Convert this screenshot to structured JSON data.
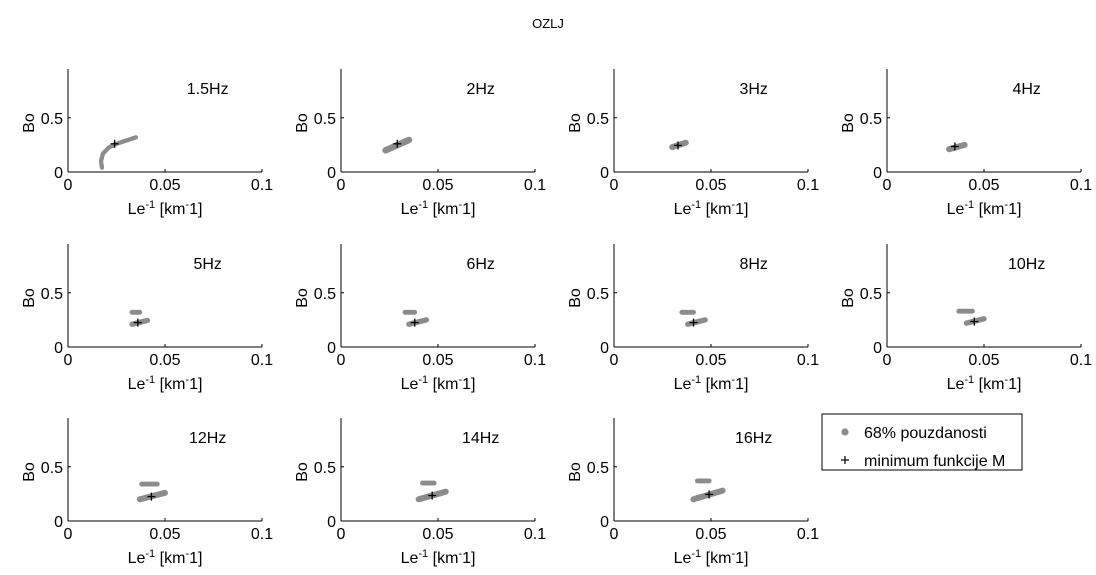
{
  "figure": {
    "title": "OZLJ"
  },
  "legend": {
    "items": [
      {
        "label": "68% pouzdanosti",
        "marker": "dot"
      },
      {
        "label": "minimum funkcije M",
        "marker": "plus"
      }
    ]
  },
  "colors": {
    "confidence": "#8c8c8c",
    "minimum": "#000000",
    "axis": "#000000"
  },
  "chart_data": [
    {
      "type": "scatter",
      "title": "1.5Hz",
      "xlabel": "Le",
      "xlabel_sup": "-1",
      "xlabel_unit": "[km",
      "xlabel_unit_sup": "-",
      "xlabel_unit_tail": "1]",
      "ylabel": "Bo",
      "xlim": [
        0,
        0.1
      ],
      "ylim": [
        0,
        0.95
      ],
      "xticks": [
        "0",
        "0.05",
        "0.1"
      ],
      "yticks": [
        "0",
        "0.5"
      ],
      "grid": false,
      "confidence_regions": [
        {
          "path": [
            [
              0.0175,
              0.04
            ],
            [
              0.017,
              0.1
            ],
            [
              0.018,
              0.17
            ],
            [
              0.021,
              0.225
            ],
            [
              0.025,
              0.26
            ],
            [
              0.03,
              0.29
            ],
            [
              0.035,
              0.32
            ]
          ],
          "width": 0.04
        }
      ],
      "minimum": {
        "x": 0.024,
        "y": 0.26
      }
    },
    {
      "type": "scatter",
      "title": "2Hz",
      "xlabel": "Le",
      "xlabel_sup": "-1",
      "xlabel_unit": "[km",
      "xlabel_unit_sup": "-",
      "xlabel_unit_tail": "1]",
      "ylabel": "Bo",
      "xlim": [
        0,
        0.1
      ],
      "ylim": [
        0,
        0.95
      ],
      "xticks": [
        "0",
        "0.05",
        "0.1"
      ],
      "yticks": [
        "0",
        "0.5"
      ],
      "grid": false,
      "confidence_regions": [
        {
          "path": [
            [
              0.023,
              0.2
            ],
            [
              0.035,
              0.295
            ]
          ],
          "width": 0.06
        }
      ],
      "minimum": {
        "x": 0.029,
        "y": 0.26
      }
    },
    {
      "type": "scatter",
      "title": "3Hz",
      "xlabel": "Le",
      "xlabel_sup": "-1",
      "xlabel_unit": "[km",
      "xlabel_unit_sup": "-",
      "xlabel_unit_tail": "1]",
      "ylabel": "Bo",
      "xlim": [
        0,
        0.1
      ],
      "ylim": [
        0,
        0.95
      ],
      "xticks": [
        "0",
        "0.05",
        "0.1"
      ],
      "yticks": [
        "0",
        "0.5"
      ],
      "grid": false,
      "confidence_regions": [
        {
          "path": [
            [
              0.03,
              0.23
            ],
            [
              0.037,
              0.27
            ]
          ],
          "width": 0.055
        }
      ],
      "minimum": {
        "x": 0.033,
        "y": 0.245
      }
    },
    {
      "type": "scatter",
      "title": "4Hz",
      "xlabel": "Le",
      "xlabel_sup": "-1",
      "xlabel_unit": "[km",
      "xlabel_unit_sup": "-",
      "xlabel_unit_tail": "1]",
      "ylabel": "Bo",
      "xlim": [
        0,
        0.1
      ],
      "ylim": [
        0,
        0.95
      ],
      "xticks": [
        "0",
        "0.05",
        "0.1"
      ],
      "yticks": [
        "0",
        "0.5"
      ],
      "grid": false,
      "confidence_regions": [
        {
          "path": [
            [
              0.032,
              0.21
            ],
            [
              0.04,
              0.25
            ]
          ],
          "width": 0.055
        }
      ],
      "minimum": {
        "x": 0.035,
        "y": 0.235
      }
    },
    {
      "type": "scatter",
      "title": "5Hz",
      "xlabel": "Le",
      "xlabel_sup": "-1",
      "xlabel_unit": "[km",
      "xlabel_unit_sup": "-",
      "xlabel_unit_tail": "1]",
      "ylabel": "Bo",
      "xlim": [
        0,
        0.1
      ],
      "ylim": [
        0,
        0.95
      ],
      "xticks": [
        "0",
        "0.05",
        "0.1"
      ],
      "yticks": [
        "0",
        "0.5"
      ],
      "grid": false,
      "confidence_regions": [
        {
          "path": [
            [
              0.033,
              0.21
            ],
            [
              0.041,
              0.245
            ]
          ],
          "width": 0.05
        },
        {
          "path": [
            [
              0.033,
              0.32
            ],
            [
              0.037,
              0.32
            ]
          ],
          "width": 0.045
        }
      ],
      "minimum": {
        "x": 0.036,
        "y": 0.225
      }
    },
    {
      "type": "scatter",
      "title": "6Hz",
      "xlabel": "Le",
      "xlabel_sup": "-1",
      "xlabel_unit": "[km",
      "xlabel_unit_sup": "-",
      "xlabel_unit_tail": "1]",
      "ylabel": "Bo",
      "xlim": [
        0,
        0.1
      ],
      "ylim": [
        0,
        0.95
      ],
      "xticks": [
        "0",
        "0.05",
        "0.1"
      ],
      "yticks": [
        "0",
        "0.5"
      ],
      "grid": false,
      "confidence_regions": [
        {
          "path": [
            [
              0.035,
              0.21
            ],
            [
              0.044,
              0.25
            ]
          ],
          "width": 0.05
        },
        {
          "path": [
            [
              0.033,
              0.32
            ],
            [
              0.038,
              0.32
            ]
          ],
          "width": 0.045
        }
      ],
      "minimum": {
        "x": 0.038,
        "y": 0.225
      }
    },
    {
      "type": "scatter",
      "title": "8Hz",
      "xlabel": "Le",
      "xlabel_sup": "-1",
      "xlabel_unit": "[km",
      "xlabel_unit_sup": "-",
      "xlabel_unit_tail": "1]",
      "ylabel": "Bo",
      "xlim": [
        0,
        0.1
      ],
      "ylim": [
        0,
        0.95
      ],
      "xticks": [
        "0",
        "0.05",
        "0.1"
      ],
      "yticks": [
        "0",
        "0.5"
      ],
      "grid": false,
      "confidence_regions": [
        {
          "path": [
            [
              0.038,
              0.21
            ],
            [
              0.047,
              0.25
            ]
          ],
          "width": 0.05
        },
        {
          "path": [
            [
              0.035,
              0.32
            ],
            [
              0.041,
              0.32
            ]
          ],
          "width": 0.045
        }
      ],
      "minimum": {
        "x": 0.041,
        "y": 0.225
      }
    },
    {
      "type": "scatter",
      "title": "10Hz",
      "xlabel": "Le",
      "xlabel_sup": "-1",
      "xlabel_unit": "[km",
      "xlabel_unit_sup": "-",
      "xlabel_unit_tail": "1]",
      "ylabel": "Bo",
      "xlim": [
        0,
        0.1
      ],
      "ylim": [
        0,
        0.95
      ],
      "xticks": [
        "0",
        "0.05",
        "0.1"
      ],
      "yticks": [
        "0",
        "0.5"
      ],
      "grid": false,
      "confidence_regions": [
        {
          "path": [
            [
              0.041,
              0.22
            ],
            [
              0.05,
              0.26
            ]
          ],
          "width": 0.05
        },
        {
          "path": [
            [
              0.037,
              0.33
            ],
            [
              0.044,
              0.33
            ]
          ],
          "width": 0.045
        }
      ],
      "minimum": {
        "x": 0.045,
        "y": 0.235
      }
    },
    {
      "type": "scatter",
      "title": "12Hz",
      "xlabel": "Le",
      "xlabel_sup": "-1",
      "xlabel_unit": "[km",
      "xlabel_unit_sup": "-",
      "xlabel_unit_tail": "1]",
      "ylabel": "Bo",
      "xlim": [
        0,
        0.1
      ],
      "ylim": [
        0,
        0.95
      ],
      "xticks": [
        "0",
        "0.05",
        "0.1"
      ],
      "yticks": [
        "0",
        "0.5"
      ],
      "grid": false,
      "confidence_regions": [
        {
          "path": [
            [
              0.037,
              0.2
            ],
            [
              0.05,
              0.26
            ]
          ],
          "width": 0.055
        },
        {
          "path": [
            [
              0.038,
              0.34
            ],
            [
              0.046,
              0.34
            ]
          ],
          "width": 0.045
        }
      ],
      "minimum": {
        "x": 0.043,
        "y": 0.225
      }
    },
    {
      "type": "scatter",
      "title": "14Hz",
      "xlabel": "Le",
      "xlabel_sup": "-1",
      "xlabel_unit": "[km",
      "xlabel_unit_sup": "-",
      "xlabel_unit_tail": "1]",
      "ylabel": "Bo",
      "xlim": [
        0,
        0.1
      ],
      "ylim": [
        0,
        0.95
      ],
      "xticks": [
        "0",
        "0.05",
        "0.1"
      ],
      "yticks": [
        "0",
        "0.5"
      ],
      "grid": false,
      "confidence_regions": [
        {
          "path": [
            [
              0.04,
              0.2
            ],
            [
              0.054,
              0.27
            ]
          ],
          "width": 0.055
        },
        {
          "path": [
            [
              0.042,
              0.35
            ],
            [
              0.048,
              0.35
            ]
          ],
          "width": 0.045
        }
      ],
      "minimum": {
        "x": 0.047,
        "y": 0.235
      }
    },
    {
      "type": "scatter",
      "title": "16Hz",
      "xlabel": "Le",
      "xlabel_sup": "-1",
      "xlabel_unit": "[km",
      "xlabel_unit_sup": "-",
      "xlabel_unit_tail": "1]",
      "ylabel": "Bo",
      "xlim": [
        0,
        0.1
      ],
      "ylim": [
        0,
        0.95
      ],
      "xticks": [
        "0",
        "0.05",
        "0.1"
      ],
      "yticks": [
        "0",
        "0.5"
      ],
      "grid": false,
      "confidence_regions": [
        {
          "path": [
            [
              0.041,
              0.2
            ],
            [
              0.056,
              0.28
            ]
          ],
          "width": 0.055
        },
        {
          "path": [
            [
              0.043,
              0.37
            ],
            [
              0.049,
              0.37
            ]
          ],
          "width": 0.045
        }
      ],
      "minimum": {
        "x": 0.049,
        "y": 0.245
      }
    }
  ]
}
